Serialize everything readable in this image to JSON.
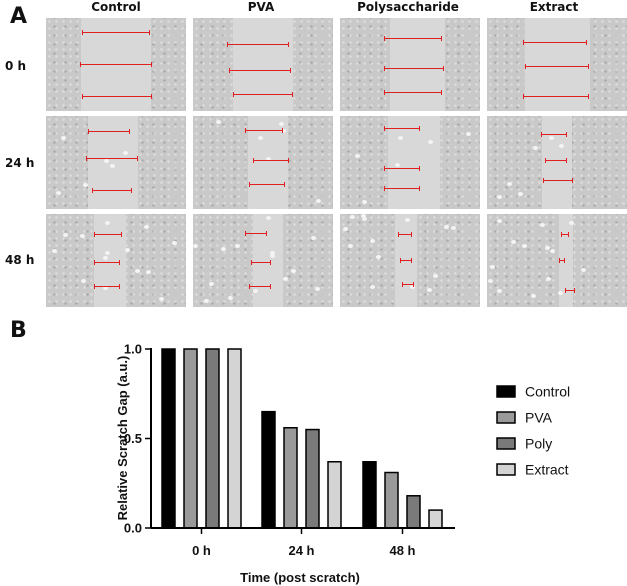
{
  "panel_a": {
    "letter": "A",
    "columns": [
      "Control",
      "PVA",
      "Polysaccharide",
      "Extract"
    ],
    "rows": [
      "0 h",
      "24 h",
      "48 h"
    ]
  },
  "panel_b": {
    "letter": "B"
  },
  "chart_data": {
    "type": "bar",
    "categories": [
      "0 h",
      "24 h",
      "48 h"
    ],
    "series": [
      {
        "name": "Control",
        "values": [
          1.0,
          0.65,
          0.37
        ],
        "color": "#000000"
      },
      {
        "name": "PVA",
        "values": [
          1.0,
          0.56,
          0.31
        ],
        "color": "#9a9a9a"
      },
      {
        "name": "Poly",
        "values": [
          1.0,
          0.55,
          0.18
        ],
        "color": "#7a7a7a"
      },
      {
        "name": "Extract",
        "values": [
          1.0,
          0.37,
          0.1
        ],
        "color": "#d4d4d4"
      }
    ],
    "xlabel": "Time (post scratch)",
    "ylabel": "Relative Scratch Gap (a.u.)",
    "ylim": [
      0,
      1.0
    ],
    "yticks": [
      "0.0",
      "0.5",
      "1.0"
    ],
    "legend_position": "right",
    "grid": false
  }
}
